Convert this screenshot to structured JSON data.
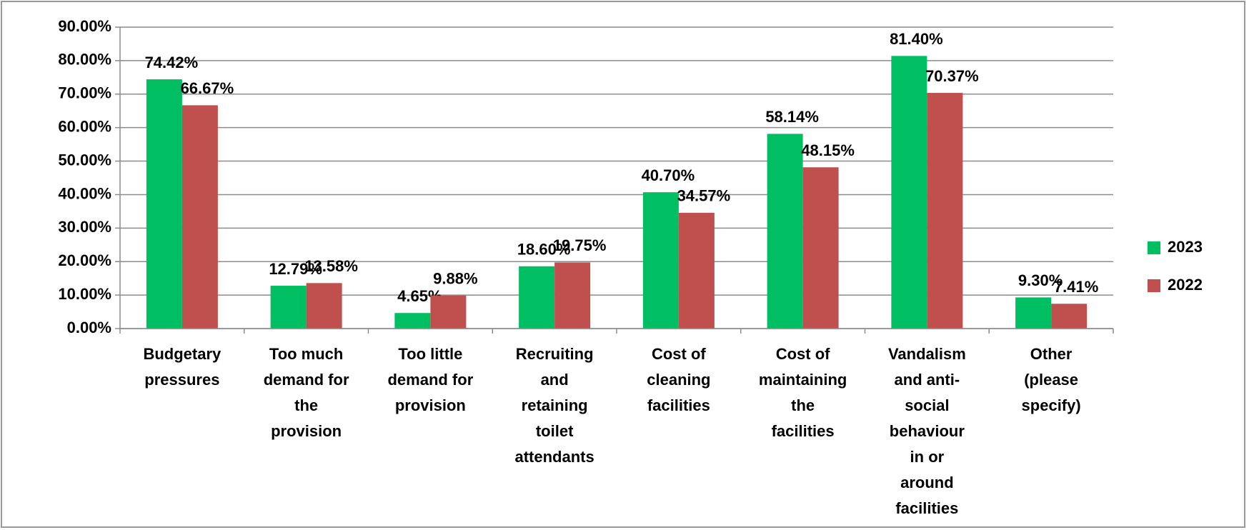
{
  "chart_data": {
    "type": "bar",
    "categories": [
      "Budgetary\npressures",
      "Too much\ndemand for\nthe\nprovision",
      "Too little\ndemand for\nprovision",
      "Recruiting\nand\nretaining\ntoilet\nattendants",
      "Cost of\ncleaning\nfacilities",
      "Cost of\nmaintaining\nthe\nfacilities",
      "Vandalism\nand anti-\nsocial\nbehaviour\nin or\naround\nfacilities",
      "Other\n(please\nspecify)"
    ],
    "series": [
      {
        "name": "2023",
        "color": "#00bf63",
        "values": [
          74.42,
          12.79,
          4.65,
          18.6,
          40.7,
          58.14,
          81.4,
          9.3
        ],
        "value_labels": [
          "74.42%",
          "12.79%",
          "4.65%",
          "18.60%",
          "40.70%",
          "58.14%",
          "81.40%",
          "9.30%"
        ]
      },
      {
        "name": "2022",
        "color": "#c0504d",
        "values": [
          66.67,
          13.58,
          9.88,
          19.75,
          34.57,
          48.15,
          70.37,
          7.41
        ],
        "value_labels": [
          "66.67%",
          "13.58%",
          "9.88%",
          "19.75%",
          "34.57%",
          "48.15%",
          "70.37%",
          "7.41%"
        ]
      }
    ],
    "ylim": [
      0,
      90
    ],
    "yticks": [
      {
        "value": 0,
        "label": "0.00%"
      },
      {
        "value": 10,
        "label": "10.00%"
      },
      {
        "value": 20,
        "label": "20.00%"
      },
      {
        "value": 30,
        "label": "30.00%"
      },
      {
        "value": 40,
        "label": "40.00%"
      },
      {
        "value": 50,
        "label": "50.00%"
      },
      {
        "value": 60,
        "label": "60.00%"
      },
      {
        "value": 70,
        "label": "70.00%"
      },
      {
        "value": 80,
        "label": "80.00%"
      },
      {
        "value": 90,
        "label": "90.00%"
      }
    ],
    "grid": true,
    "legend": "right"
  }
}
